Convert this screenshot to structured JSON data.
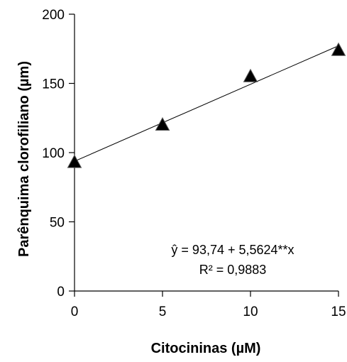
{
  "chart_data": {
    "type": "scatter",
    "xlabel": "Citocininas (µM)",
    "ylabel": "Parênquima clorofiliano (µm)",
    "xlim": [
      0,
      15
    ],
    "ylim": [
      0,
      200
    ],
    "x_ticks": [
      0,
      5,
      10,
      15
    ],
    "y_ticks": [
      0,
      50,
      100,
      150,
      200
    ],
    "grid": false,
    "series": [
      {
        "marker": "triangle",
        "color": "#000000",
        "points": [
          {
            "x": 0,
            "y": 93
          },
          {
            "x": 5,
            "y": 120
          },
          {
            "x": 10,
            "y": 155
          },
          {
            "x": 15,
            "y": 174
          }
        ]
      }
    ],
    "trendline": {
      "intercept": 93.74,
      "slope": 5.5624
    },
    "annotations": {
      "equation": "ŷ = 93,74 + 5,5624**x",
      "r_squared": "R² = 0,9883"
    }
  }
}
